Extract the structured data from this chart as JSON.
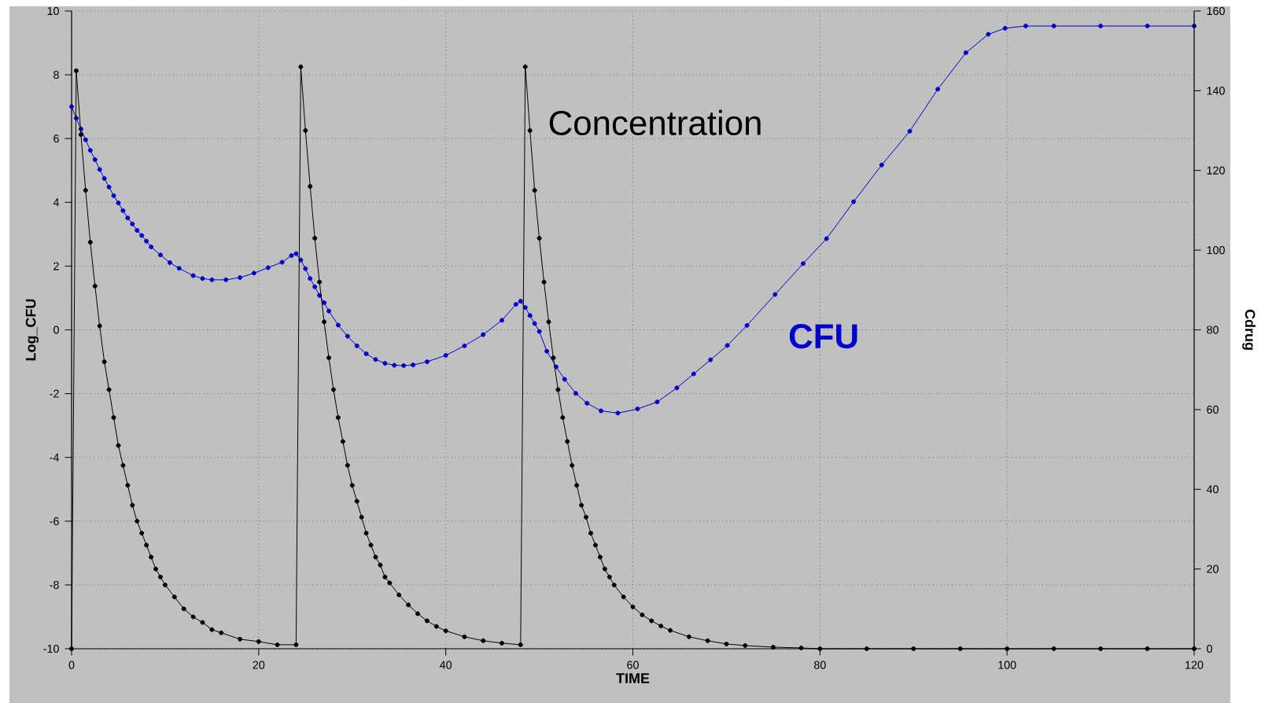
{
  "chart_data": {
    "type": "line",
    "xlabel": "TIME",
    "ylabel": "Log_CFU",
    "y2label": "Cdrug",
    "xlim": [
      0,
      120
    ],
    "xticks": [
      0,
      20,
      40,
      60,
      80,
      100,
      120
    ],
    "ylim": [
      -10,
      10
    ],
    "yticks": [
      -10,
      -8,
      -6,
      -4,
      -2,
      0,
      2,
      4,
      6,
      8,
      10
    ],
    "y2lim": [
      0,
      160
    ],
    "y2ticks": [
      0,
      20,
      40,
      60,
      80,
      100,
      120,
      140,
      160
    ],
    "grid": true,
    "marker": "circle",
    "series": [
      {
        "name": "CFU",
        "color": "#0000cc",
        "x": [
          0,
          0.5,
          1,
          1.5,
          2,
          2.5,
          3,
          3.5,
          4,
          4.5,
          5,
          5.5,
          6,
          6.5,
          7,
          7.5,
          8,
          8.5,
          9.5,
          10.5,
          11.5,
          13,
          14,
          15,
          16.5,
          18,
          19.5,
          21,
          22.5,
          23.5,
          24,
          24.5,
          25,
          25.5,
          26,
          26.5,
          27,
          27.5,
          28.5,
          29.5,
          30.5,
          31.5,
          32.5,
          33.5,
          34.5,
          35.5,
          36.5,
          38,
          40,
          42,
          44,
          46,
          47.5,
          48,
          48.5,
          49,
          49.5,
          50,
          50.8,
          51.8,
          52.7,
          53.9,
          55.1,
          56.6,
          58.4,
          60.5,
          62.6,
          64.7,
          66.5,
          68.3,
          70.1,
          72.2,
          75.2,
          78.2,
          80.7,
          83.6,
          86.6,
          89.6,
          92.6,
          95.6,
          98,
          99.8,
          102,
          105,
          110,
          115,
          120
        ],
        "values": [
          7.0,
          6.64,
          6.3,
          5.96,
          5.63,
          5.34,
          5.03,
          4.75,
          4.48,
          4.21,
          3.98,
          3.74,
          3.51,
          3.32,
          3.12,
          2.96,
          2.78,
          2.6,
          2.35,
          2.11,
          1.93,
          1.7,
          1.61,
          1.57,
          1.57,
          1.64,
          1.78,
          1.95,
          2.12,
          2.33,
          2.39,
          2.19,
          1.92,
          1.61,
          1.35,
          1.08,
          0.85,
          0.59,
          0.15,
          -0.2,
          -0.5,
          -0.75,
          -0.93,
          -1.05,
          -1.11,
          -1.12,
          -1.1,
          -1.0,
          -0.8,
          -0.5,
          -0.15,
          0.3,
          0.8,
          0.9,
          0.7,
          0.45,
          0.2,
          -0.05,
          -0.67,
          -1.16,
          -1.55,
          -1.99,
          -2.3,
          -2.54,
          -2.61,
          -2.48,
          -2.26,
          -1.82,
          -1.38,
          -0.94,
          -0.49,
          0.14,
          1.11,
          2.08,
          2.86,
          4.02,
          5.17,
          6.23,
          7.55,
          8.69,
          9.27,
          9.46,
          9.53,
          9.53,
          9.53,
          9.53,
          9.53
        ]
      },
      {
        "name": "Concentration",
        "color": "#000000",
        "axis": "y2",
        "x": [
          0,
          0.5,
          1,
          1.5,
          2,
          2.5,
          3,
          3.5,
          4,
          4.5,
          5,
          5.5,
          6,
          6.5,
          7,
          7.5,
          8,
          8.5,
          9,
          9.5,
          10,
          11,
          12,
          13,
          14,
          15,
          16,
          18,
          20,
          22,
          24,
          24.5,
          25,
          25.5,
          26,
          26.5,
          27,
          27.5,
          28,
          28.5,
          29,
          29.5,
          30,
          30.5,
          31,
          31.5,
          32,
          32.5,
          33,
          33.5,
          34,
          35,
          36,
          37,
          38,
          39,
          40,
          42,
          44,
          46,
          48,
          48.5,
          49,
          49.5,
          50,
          50.5,
          51,
          51.5,
          52,
          52.5,
          53,
          53.5,
          54,
          54.5,
          55,
          55.5,
          56,
          56.5,
          57,
          57.5,
          58,
          59,
          60,
          61,
          62,
          63,
          64,
          66,
          68,
          70,
          72,
          75,
          78,
          80,
          85,
          90,
          95,
          100,
          105,
          110,
          115,
          120
        ],
        "values": [
          0,
          145,
          129,
          115,
          102,
          91,
          81,
          72,
          65,
          58,
          51,
          46,
          41,
          36,
          32,
          29,
          26,
          23,
          20,
          18,
          16,
          13,
          10,
          8,
          6.6,
          4.8,
          4,
          2.4,
          1.8,
          1,
          1,
          146,
          130,
          116,
          103,
          92,
          82,
          73,
          65,
          58,
          52,
          46,
          41,
          37,
          33,
          29,
          26,
          23,
          21,
          18,
          16.5,
          13.5,
          11,
          8.8,
          7,
          5.6,
          4.5,
          3,
          2,
          1.4,
          1,
          146,
          130,
          115,
          103,
          92,
          82,
          73,
          65,
          58,
          52,
          46,
          41,
          36,
          33,
          29,
          26,
          23,
          20,
          18,
          16,
          13,
          10.5,
          8.5,
          7,
          5.7,
          4.6,
          3,
          2,
          1.2,
          0.8,
          0.4,
          0.2,
          0,
          0,
          0,
          0,
          0,
          0,
          0,
          0,
          0
        ]
      }
    ]
  }
}
